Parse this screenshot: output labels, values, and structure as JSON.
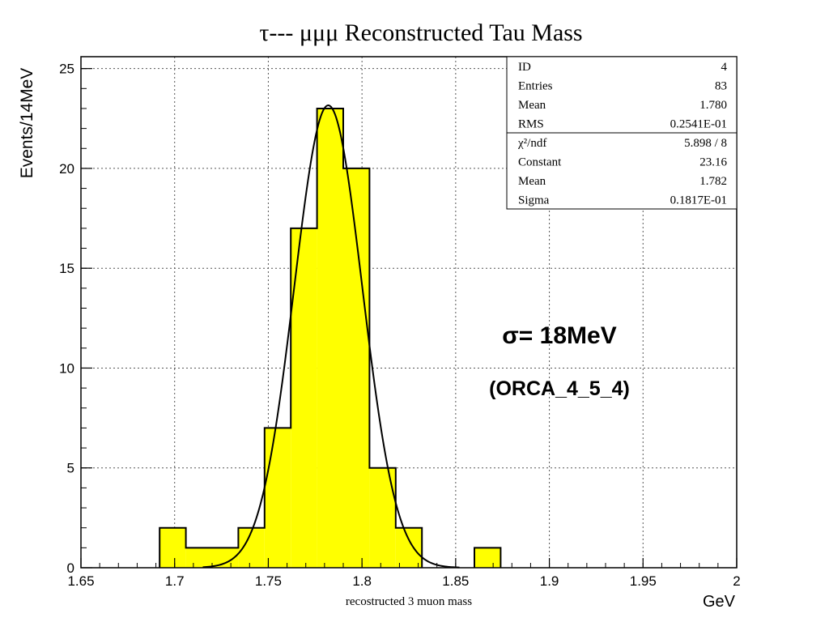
{
  "chart_data": {
    "type": "histogram",
    "title": "τ--- μμμ  Reconstructed Tau Mass",
    "xlabel": "recostructed 3 muon mass",
    "xunit": "GeV",
    "ylabel": "Events/14MeV",
    "xlim": [
      1.65,
      2.0
    ],
    "ylim": [
      0,
      26
    ],
    "x_ticks": [
      "1.65",
      "1.7",
      "1.75",
      "1.8",
      "1.85",
      "1.9",
      "1.95",
      "2"
    ],
    "y_ticks": [
      "0",
      "5",
      "10",
      "15",
      "20",
      "25"
    ],
    "grid": true,
    "bin_width": 0.014,
    "bins": [
      {
        "x0": 1.692,
        "x1": 1.706,
        "count": 2
      },
      {
        "x0": 1.706,
        "x1": 1.734,
        "count": 1
      },
      {
        "x0": 1.734,
        "x1": 1.748,
        "count": 2
      },
      {
        "x0": 1.748,
        "x1": 1.762,
        "count": 7
      },
      {
        "x0": 1.762,
        "x1": 1.776,
        "count": 17
      },
      {
        "x0": 1.776,
        "x1": 1.79,
        "count": 23
      },
      {
        "x0": 1.79,
        "x1": 1.804,
        "count": 20
      },
      {
        "x0": 1.804,
        "x1": 1.818,
        "count": 5
      },
      {
        "x0": 1.818,
        "x1": 1.832,
        "count": 2
      },
      {
        "x0": 1.86,
        "x1": 1.874,
        "count": 1
      }
    ],
    "fit": {
      "type": "gaussian",
      "constant": 23.16,
      "mean": 1.782,
      "sigma": 0.01817
    },
    "fill_color": "#ffff00",
    "line_color": "#000000",
    "stats_box": {
      "placement": "top-right",
      "rows": [
        {
          "label": "ID",
          "value": "4",
          "sep": false
        },
        {
          "label": "Entries",
          "value": "83",
          "sep": false
        },
        {
          "label": "Mean",
          "value": "1.780",
          "sep": false
        },
        {
          "label": "RMS",
          "value": "0.2541E-01",
          "sep": true
        },
        {
          "label": "χ²/ndf",
          "value": "5.898   /   8",
          "sep": false
        },
        {
          "label": "Constant",
          "value": "23.16",
          "sep": false
        },
        {
          "label": "Mean",
          "value": "1.782",
          "sep": false
        },
        {
          "label": "Sigma",
          "value": "0.1817E-01",
          "sep": false
        }
      ]
    },
    "annotations": [
      "σ= 18MeV",
      "(ORCA_4_5_4)"
    ]
  }
}
